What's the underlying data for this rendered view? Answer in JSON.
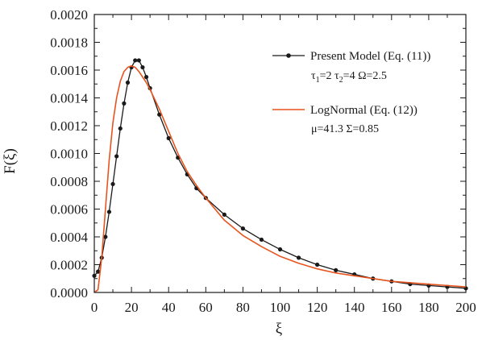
{
  "chart_data": {
    "type": "line",
    "xlabel": "ξ",
    "ylabel": "F(ξ)",
    "xlim": [
      0,
      200
    ],
    "ylim": [
      0,
      0.002
    ],
    "x_ticks": [
      "0",
      "20",
      "40",
      "60",
      "80",
      "100",
      "120",
      "140",
      "160",
      "180",
      "200"
    ],
    "y_ticks": [
      "0.0000",
      "0.0002",
      "0.0004",
      "0.0006",
      "0.0008",
      "0.0010",
      "0.0012",
      "0.0014",
      "0.0016",
      "0.0018",
      "0.0020"
    ],
    "grid": false,
    "legend_position": "top-right",
    "series": [
      {
        "name": "Present Model (Eq. (11))",
        "params_line": [
          "τ",
          "1",
          "=2  τ",
          "2",
          "=4  Ω=2.5"
        ],
        "style": "line-with-circle-markers",
        "color": "#1a1a1a",
        "x": [
          0,
          2,
          4,
          6,
          8,
          10,
          12,
          14,
          16,
          18,
          20,
          22,
          24,
          26,
          28,
          30,
          35,
          40,
          45,
          50,
          55,
          60,
          70,
          80,
          90,
          100,
          110,
          120,
          130,
          140,
          150,
          160,
          170,
          180,
          190,
          200
        ],
        "y": [
          0.00012,
          0.00015,
          0.00025,
          0.0004,
          0.00058,
          0.00078,
          0.00098,
          0.00118,
          0.00136,
          0.00151,
          0.00162,
          0.00167,
          0.00167,
          0.00162,
          0.00155,
          0.00147,
          0.00128,
          0.00111,
          0.00097,
          0.00085,
          0.00075,
          0.00068,
          0.00056,
          0.00046,
          0.00038,
          0.00031,
          0.00025,
          0.0002,
          0.00016,
          0.00013,
          0.0001,
          8e-05,
          6e-05,
          5e-05,
          4e-05,
          3e-05
        ]
      },
      {
        "name": "LogNormal (Eq. (12))",
        "params_line": [
          "μ=41.3  Σ=0.85"
        ],
        "style": "line",
        "color": "#e8541e",
        "x": [
          0,
          2,
          4,
          6,
          8,
          10,
          12,
          14,
          16,
          18,
          20,
          22,
          24,
          26,
          28,
          30,
          35,
          40,
          45,
          50,
          55,
          60,
          70,
          80,
          90,
          100,
          110,
          120,
          130,
          140,
          150,
          160,
          170,
          180,
          190,
          200
        ],
        "y": [
          0.0,
          2e-05,
          0.00025,
          0.0006,
          0.00095,
          0.00122,
          0.0014,
          0.00152,
          0.00159,
          0.00162,
          0.00163,
          0.00162,
          0.00159,
          0.00155,
          0.00151,
          0.00146,
          0.00132,
          0.00116,
          0.001,
          0.00087,
          0.00077,
          0.00068,
          0.00052,
          0.00041,
          0.00033,
          0.00026,
          0.00021,
          0.00017,
          0.00014,
          0.00012,
          0.0001,
          8e-05,
          7e-05,
          6e-05,
          5e-05,
          4e-05
        ]
      }
    ]
  }
}
